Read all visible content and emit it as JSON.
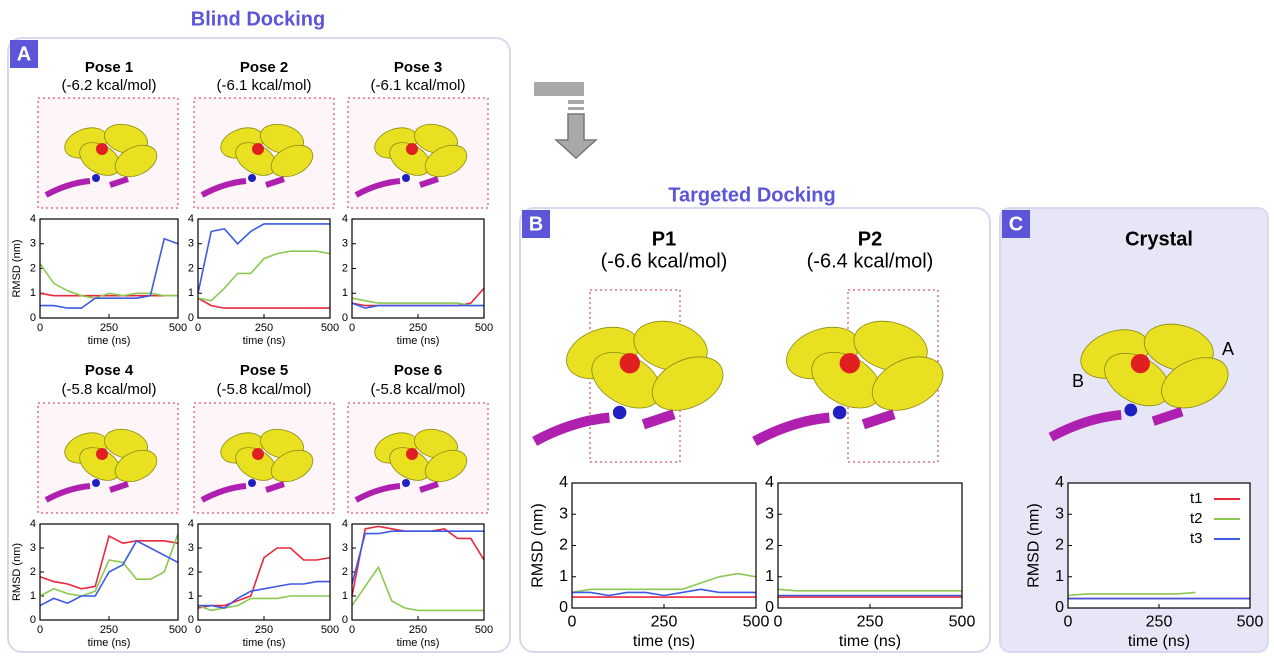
{
  "headings": {
    "blind": "Blind Docking",
    "targeted": "Targeted Docking",
    "panel_a": "A",
    "panel_b": "B",
    "panel_c": "C",
    "chain_a": "A",
    "chain_b": "B"
  },
  "chart_data": [
    {
      "type": "line",
      "title": "Pose 1",
      "subtitle": "(-6.2 kcal/mol)",
      "xlabel": "time (ns)",
      "ylabel": "RMSD (nm)",
      "x": [
        0,
        50,
        100,
        150,
        200,
        250,
        300,
        350,
        400,
        450,
        500
      ],
      "xlim": [
        0,
        500
      ],
      "ylim": [
        0,
        4
      ],
      "xticks": [
        0,
        250,
        500
      ],
      "yticks": [
        0,
        1,
        2,
        3,
        4
      ],
      "series": [
        {
          "color": "#e8283c",
          "values": [
            1.0,
            0.9,
            0.9,
            0.9,
            0.9,
            0.9,
            0.9,
            0.9,
            0.9,
            0.9,
            0.9
          ]
        },
        {
          "color": "#8cc850",
          "values": [
            2.2,
            1.4,
            1.1,
            0.9,
            0.8,
            1.0,
            0.9,
            1.0,
            1.0,
            0.9,
            0.9
          ]
        },
        {
          "color": "#3c5ae6",
          "values": [
            0.5,
            0.5,
            0.4,
            0.4,
            0.8,
            0.8,
            0.8,
            0.8,
            0.9,
            3.2,
            3.0
          ]
        }
      ]
    },
    {
      "type": "line",
      "title": "Pose 2",
      "subtitle": "(-6.1 kcal/mol)",
      "xlabel": "time (ns)",
      "x": [
        0,
        50,
        100,
        150,
        200,
        250,
        300,
        350,
        400,
        450,
        500
      ],
      "xlim": [
        0,
        500
      ],
      "ylim": [
        0,
        4
      ],
      "xticks": [
        0,
        250,
        500
      ],
      "yticks": [
        0,
        1,
        2,
        3,
        4
      ],
      "series": [
        {
          "color": "#e8283c",
          "values": [
            0.8,
            0.5,
            0.4,
            0.4,
            0.4,
            0.4,
            0.4,
            0.4,
            0.4,
            0.4,
            0.4
          ]
        },
        {
          "color": "#8cc850",
          "values": [
            0.8,
            0.7,
            1.2,
            1.8,
            1.8,
            2.4,
            2.6,
            2.7,
            2.7,
            2.7,
            2.6
          ]
        },
        {
          "color": "#3c5ae6",
          "values": [
            1.0,
            3.5,
            3.6,
            3.0,
            3.5,
            3.8,
            3.8,
            3.8,
            3.8,
            3.8,
            3.8
          ]
        }
      ]
    },
    {
      "type": "line",
      "title": "Pose 3",
      "subtitle": "(-6.1 kcal/mol)",
      "xlabel": "time (ns)",
      "x": [
        0,
        50,
        100,
        150,
        200,
        250,
        300,
        350,
        400,
        450,
        500
      ],
      "xlim": [
        0,
        500
      ],
      "ylim": [
        0,
        4
      ],
      "xticks": [
        0,
        250,
        500
      ],
      "yticks": [
        0,
        1,
        2,
        3,
        4
      ],
      "series": [
        {
          "color": "#e8283c",
          "values": [
            0.6,
            0.5,
            0.5,
            0.5,
            0.5,
            0.5,
            0.5,
            0.5,
            0.5,
            0.6,
            1.2
          ]
        },
        {
          "color": "#8cc850",
          "values": [
            0.8,
            0.7,
            0.6,
            0.6,
            0.6,
            0.6,
            0.6,
            0.6,
            0.6,
            0.5,
            0.5
          ]
        },
        {
          "color": "#3c5ae6",
          "values": [
            0.6,
            0.4,
            0.5,
            0.5,
            0.5,
            0.5,
            0.5,
            0.5,
            0.5,
            0.5,
            0.5
          ]
        }
      ]
    },
    {
      "type": "line",
      "title": "Pose 4",
      "subtitle": "(-5.8 kcal/mol)",
      "xlabel": "time (ns)",
      "ylabel": "RMSD (nm)",
      "x": [
        0,
        50,
        100,
        150,
        200,
        250,
        300,
        350,
        400,
        450,
        500
      ],
      "xlim": [
        0,
        500
      ],
      "ylim": [
        0,
        4
      ],
      "xticks": [
        0,
        250,
        500
      ],
      "yticks": [
        0,
        1,
        2,
        3,
        4
      ],
      "series": [
        {
          "color": "#e8283c",
          "values": [
            1.8,
            1.6,
            1.5,
            1.3,
            1.4,
            3.5,
            3.2,
            3.3,
            3.3,
            3.3,
            3.2
          ]
        },
        {
          "color": "#8cc850",
          "values": [
            1.0,
            1.3,
            1.1,
            1.0,
            1.2,
            2.5,
            2.4,
            1.7,
            1.7,
            2.0,
            3.6
          ]
        },
        {
          "color": "#3c5ae6",
          "values": [
            0.6,
            0.9,
            0.7,
            1.0,
            1.0,
            2.0,
            2.3,
            3.3,
            3.0,
            2.7,
            2.4
          ]
        }
      ]
    },
    {
      "type": "line",
      "title": "Pose 5",
      "subtitle": "(-5.8 kcal/mol)",
      "xlabel": "time (ns)",
      "x": [
        0,
        50,
        100,
        150,
        200,
        250,
        300,
        350,
        400,
        450,
        500
      ],
      "xlim": [
        0,
        500
      ],
      "ylim": [
        0,
        4
      ],
      "xticks": [
        0,
        250,
        500
      ],
      "yticks": [
        0,
        1,
        2,
        3,
        4
      ],
      "series": [
        {
          "color": "#e8283c",
          "values": [
            0.5,
            0.6,
            0.6,
            0.8,
            1.0,
            2.6,
            3.0,
            3.0,
            2.5,
            2.5,
            2.6
          ]
        },
        {
          "color": "#8cc850",
          "values": [
            0.6,
            0.4,
            0.5,
            0.6,
            0.9,
            0.9,
            0.9,
            1.0,
            1.0,
            1.0,
            1.0
          ]
        },
        {
          "color": "#3c5ae6",
          "values": [
            0.6,
            0.6,
            0.5,
            0.9,
            1.2,
            1.3,
            1.4,
            1.5,
            1.5,
            1.6,
            1.6
          ]
        }
      ]
    },
    {
      "type": "line",
      "title": "Pose 6",
      "subtitle": "(-5.8 kcal/mol)",
      "xlabel": "time (ns)",
      "x": [
        0,
        50,
        100,
        150,
        200,
        250,
        300,
        350,
        400,
        450,
        500
      ],
      "xlim": [
        0,
        500
      ],
      "ylim": [
        0,
        4
      ],
      "xticks": [
        0,
        250,
        500
      ],
      "yticks": [
        0,
        1,
        2,
        3,
        4
      ],
      "series": [
        {
          "color": "#e8283c",
          "values": [
            1.0,
            3.8,
            3.9,
            3.8,
            3.7,
            3.7,
            3.7,
            3.8,
            3.4,
            3.4,
            2.5
          ]
        },
        {
          "color": "#8cc850",
          "values": [
            0.6,
            1.4,
            2.2,
            0.8,
            0.5,
            0.4,
            0.4,
            0.4,
            0.4,
            0.4,
            0.4
          ]
        },
        {
          "color": "#3c5ae6",
          "values": [
            1.5,
            3.6,
            3.6,
            3.7,
            3.7,
            3.7,
            3.7,
            3.7,
            3.7,
            3.7,
            3.7
          ]
        }
      ]
    },
    {
      "type": "line",
      "title": "P1",
      "subtitle": "(-6.6 kcal/mol)",
      "xlabel": "time (ns)",
      "ylabel": "RMSD (nm)",
      "x": [
        0,
        50,
        100,
        150,
        200,
        250,
        300,
        350,
        400,
        450,
        500
      ],
      "xlim": [
        0,
        500
      ],
      "ylim": [
        0,
        4
      ],
      "xticks": [
        0,
        250,
        500
      ],
      "yticks": [
        0,
        1,
        2,
        3,
        4
      ],
      "series": [
        {
          "color": "#e8283c",
          "values": [
            0.35,
            0.35,
            0.35,
            0.35,
            0.35,
            0.35,
            0.35,
            0.35,
            0.35,
            0.35,
            0.35
          ]
        },
        {
          "color": "#8cc850",
          "values": [
            0.5,
            0.6,
            0.6,
            0.6,
            0.6,
            0.6,
            0.6,
            0.8,
            1.0,
            1.1,
            1.0
          ]
        },
        {
          "color": "#3c5ae6",
          "values": [
            0.5,
            0.5,
            0.4,
            0.5,
            0.5,
            0.4,
            0.5,
            0.6,
            0.5,
            0.5,
            0.5
          ]
        }
      ]
    },
    {
      "type": "line",
      "title": "P2",
      "subtitle": "(-6.4 kcal/mol)",
      "xlabel": "time (ns)",
      "x": [
        0,
        50,
        100,
        150,
        200,
        250,
        300,
        350,
        400,
        450,
        500
      ],
      "xlim": [
        0,
        500
      ],
      "ylim": [
        0,
        4
      ],
      "xticks": [
        0,
        250,
        500
      ],
      "yticks": [
        0,
        1,
        2,
        3,
        4
      ],
      "series": [
        {
          "color": "#e8283c",
          "values": [
            0.35,
            0.35,
            0.35,
            0.35,
            0.35,
            0.35,
            0.35,
            0.35,
            0.35,
            0.35,
            0.35
          ]
        },
        {
          "color": "#8cc850",
          "values": [
            0.6,
            0.55,
            0.55,
            0.55,
            0.55,
            0.55,
            0.55,
            0.55,
            0.55,
            0.55,
            0.55
          ]
        },
        {
          "color": "#3c5ae6",
          "values": [
            0.4,
            0.4,
            0.4,
            0.4,
            0.4,
            0.4,
            0.4,
            0.4,
            0.4,
            0.4,
            0.4
          ]
        }
      ]
    },
    {
      "type": "line",
      "title": "Crystal",
      "xlabel": "time (ns)",
      "ylabel": "RMSD (nm)",
      "legend": "upper right",
      "x": [
        0,
        50,
        100,
        150,
        200,
        250,
        300,
        350,
        400,
        450,
        500
      ],
      "xlim": [
        0,
        500
      ],
      "ylim": [
        0,
        4
      ],
      "xticks": [
        0,
        250,
        500
      ],
      "yticks": [
        0,
        1,
        2,
        3,
        4
      ],
      "series": [
        {
          "name": "t1",
          "color": "#e8283c",
          "values": [
            0.3,
            0.3,
            0.3,
            0.3,
            0.3,
            0.3,
            0.3,
            0.3,
            0.3,
            0.3,
            0.3
          ]
        },
        {
          "name": "t2",
          "color": "#8cc850",
          "values": [
            0.4,
            0.45,
            0.45,
            0.45,
            0.45,
            0.45,
            0.45,
            0.5,
            null,
            null,
            null
          ]
        },
        {
          "name": "t3",
          "color": "#3c5ae6",
          "values": [
            0.3,
            0.3,
            0.3,
            0.3,
            0.3,
            0.3,
            0.3,
            0.3,
            0.3,
            0.3,
            0.3
          ]
        }
      ]
    }
  ]
}
